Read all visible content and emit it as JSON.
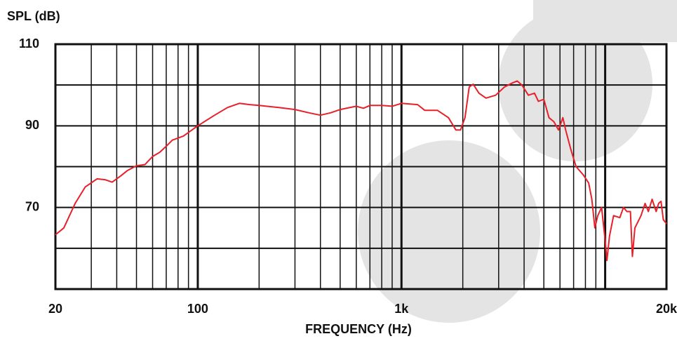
{
  "chart_data": {
    "type": "line",
    "ylabel": "SPL (dB)",
    "xlabel": "FREQUENCY (Hz)",
    "x": [
      20,
      22,
      25,
      28,
      32,
      35,
      38,
      42,
      45,
      50,
      55,
      60,
      65,
      70,
      75,
      85,
      100,
      120,
      140,
      160,
      180,
      200,
      250,
      300,
      350,
      400,
      450,
      500,
      600,
      650,
      700,
      800,
      900,
      1000,
      1200,
      1300,
      1500,
      1700,
      1850,
      1950,
      2050,
      2150,
      2250,
      2400,
      2600,
      2900,
      3200,
      3500,
      3700,
      3900,
      4200,
      4500,
      4700,
      5000,
      5300,
      5600,
      5900,
      6200,
      6400,
      6800,
      7200,
      7800,
      8300,
      8600,
      8900,
      9200,
      9600,
      10000,
      10200,
      10500,
      11000,
      11800,
      12300,
      12800,
      13300,
      13600,
      14000,
      15000,
      15700,
      16300,
      17000,
      17800,
      18300,
      18800,
      19300,
      20000
    ],
    "values": [
      63.3,
      65,
      71,
      75,
      77,
      76.8,
      76.2,
      77.8,
      79,
      80.2,
      80.5,
      82.5,
      83.5,
      85,
      86.5,
      87.5,
      90,
      92.5,
      94.5,
      95.5,
      95.2,
      95,
      94.5,
      94,
      93.2,
      92.6,
      93.2,
      94,
      94.8,
      94.3,
      95,
      95,
      94.8,
      95.5,
      95.2,
      93.8,
      93.8,
      92,
      89,
      89,
      92,
      99.5,
      100.2,
      98,
      96.8,
      97.5,
      99.5,
      100.5,
      101,
      100,
      97.5,
      98,
      96,
      96.5,
      92,
      91,
      89,
      92,
      89,
      84,
      80,
      78,
      76,
      72,
      65,
      68,
      70,
      62,
      57,
      63,
      68,
      67.5,
      70,
      69,
      69,
      58,
      65,
      68,
      71,
      69,
      72,
      69,
      71,
      71.5,
      67,
      66
    ],
    "color": "#e8202a",
    "xscale": "log",
    "xlim": [
      20,
      20000
    ],
    "ylim": [
      50,
      110
    ],
    "xticks": [
      20,
      100,
      {
        "value": 1000,
        "label": "1k"
      },
      {
        "value": 20000,
        "label": "20k"
      }
    ],
    "yticks": [
      70,
      90,
      110
    ],
    "x_minor_grid": [
      30,
      40,
      50,
      60,
      70,
      80,
      90,
      200,
      300,
      400,
      500,
      600,
      700,
      800,
      900,
      2000,
      3000,
      4000,
      5000,
      6000,
      7000,
      8000,
      9000,
      10000
    ],
    "y_minor_grid": [
      50,
      60,
      80,
      100
    ],
    "grid": true
  }
}
